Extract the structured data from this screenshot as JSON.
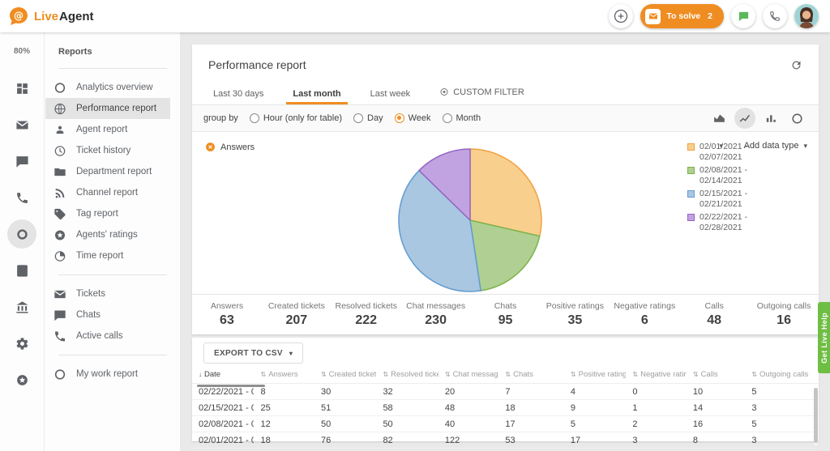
{
  "topbar": {
    "brand_live": "Live",
    "brand_agent": "Agent",
    "to_solve_label": "To solve",
    "to_solve_count": "2"
  },
  "rail": {
    "zoom_level": "80%",
    "items": [
      {
        "icon": "dashboard-icon",
        "active": false
      },
      {
        "icon": "tickets-icon",
        "active": false
      },
      {
        "icon": "chats-icon",
        "active": false
      },
      {
        "icon": "calls-icon",
        "active": false
      },
      {
        "icon": "reports-icon",
        "active": true
      },
      {
        "icon": "contacts-icon",
        "active": false
      },
      {
        "icon": "academy-icon",
        "active": false
      },
      {
        "icon": "settings-icon",
        "active": false
      },
      {
        "icon": "help-icon",
        "active": false
      }
    ]
  },
  "sidebar": {
    "title": "Reports",
    "groups": [
      {
        "items": [
          {
            "icon": "ring-icon",
            "label": "Analytics overview",
            "active": false
          },
          {
            "icon": "globe-icon",
            "label": "Performance report",
            "active": true
          },
          {
            "icon": "person-icon",
            "label": "Agent report",
            "active": false
          },
          {
            "icon": "history-icon",
            "label": "Ticket history",
            "active": false
          },
          {
            "icon": "folder-icon",
            "label": "Department report",
            "active": false
          },
          {
            "icon": "rss-icon",
            "label": "Channel report",
            "active": false
          },
          {
            "icon": "tag-icon",
            "label": "Tag report",
            "active": false
          },
          {
            "icon": "star-circle-icon",
            "label": "Agents' ratings",
            "active": false
          },
          {
            "icon": "time-icon",
            "label": "Time report",
            "active": false
          }
        ]
      },
      {
        "items": [
          {
            "icon": "tickets-icon",
            "label": "Tickets",
            "active": false
          },
          {
            "icon": "chats-icon",
            "label": "Chats",
            "active": false
          },
          {
            "icon": "calls-icon",
            "label": "Active calls",
            "active": false
          }
        ]
      },
      {
        "items": [
          {
            "icon": "ring-icon",
            "label": "My work report",
            "active": false
          }
        ]
      }
    ]
  },
  "report": {
    "title": "Performance report",
    "tabs": [
      {
        "label": "Last 30 days",
        "active": false,
        "icon": null
      },
      {
        "label": "Last month",
        "active": true,
        "icon": null
      },
      {
        "label": "Last week",
        "active": false,
        "icon": null
      },
      {
        "label": "CUSTOM FILTER",
        "active": false,
        "icon": "circle-dot-icon"
      }
    ],
    "group_by_label": "group by",
    "group_by_options": [
      {
        "label": "Hour (only for table)",
        "selected": false
      },
      {
        "label": "Day",
        "selected": false
      },
      {
        "label": "Week",
        "selected": true
      },
      {
        "label": "Month",
        "selected": false
      }
    ],
    "chart_type_buttons": [
      {
        "icon": "area-chart-icon",
        "active": false
      },
      {
        "icon": "line-chart-icon",
        "active": true
      },
      {
        "icon": "bar-chart-icon",
        "active": false
      },
      {
        "icon": "donut-chart-icon",
        "active": false
      }
    ],
    "series_chip_label": "Answers",
    "add_data_type_label": "Add data type"
  },
  "chart_data": {
    "type": "pie",
    "title": "Answers",
    "categories": [
      "02/01/2021 - 02/07/2021",
      "02/08/2021 - 02/14/2021",
      "02/15/2021 - 02/21/2021",
      "02/22/2021 - 02/28/2021"
    ],
    "values": [
      18,
      12,
      25,
      8
    ],
    "colors": [
      "#F9CF8E",
      "#AFD092",
      "#A9C7E1",
      "#C2A3E1"
    ],
    "stroke_colors": [
      "#EFA23F",
      "#7DB249",
      "#629BD2",
      "#9465C4"
    ],
    "legend_position": "right",
    "start_angle_deg": 0,
    "direction": "clockwise"
  },
  "stats": [
    {
      "label": "Answers",
      "value": "63"
    },
    {
      "label": "Created tickets",
      "value": "207"
    },
    {
      "label": "Resolved tickets",
      "value": "222"
    },
    {
      "label": "Chat messages",
      "value": "230"
    },
    {
      "label": "Chats",
      "value": "95"
    },
    {
      "label": "Positive ratings",
      "value": "35"
    },
    {
      "label": "Negative ratings",
      "value": "6"
    },
    {
      "label": "Calls",
      "value": "48"
    },
    {
      "label": "Outgoing calls",
      "value": "16"
    }
  ],
  "export_button_label": "EXPORT TO CSV",
  "table": {
    "columns": [
      "Date",
      "Answers",
      "Created tickets",
      "Resolved tickets",
      "Chat messages",
      "Chats",
      "Positive ratings",
      "Negative ratings",
      "Calls",
      "Outgoing calls"
    ],
    "rows": [
      [
        "02/22/2021 - 0...",
        "8",
        "30",
        "32",
        "20",
        "7",
        "4",
        "0",
        "10",
        "5"
      ],
      [
        "02/15/2021 - 0...",
        "25",
        "51",
        "58",
        "48",
        "18",
        "9",
        "1",
        "14",
        "3"
      ],
      [
        "02/08/2021 - 0...",
        "12",
        "50",
        "50",
        "40",
        "17",
        "5",
        "2",
        "16",
        "5"
      ],
      [
        "02/01/2021 - 0...",
        "18",
        "76",
        "82",
        "122",
        "53",
        "17",
        "3",
        "8",
        "3"
      ]
    ]
  },
  "get_live_help_label": "Get Live Help"
}
